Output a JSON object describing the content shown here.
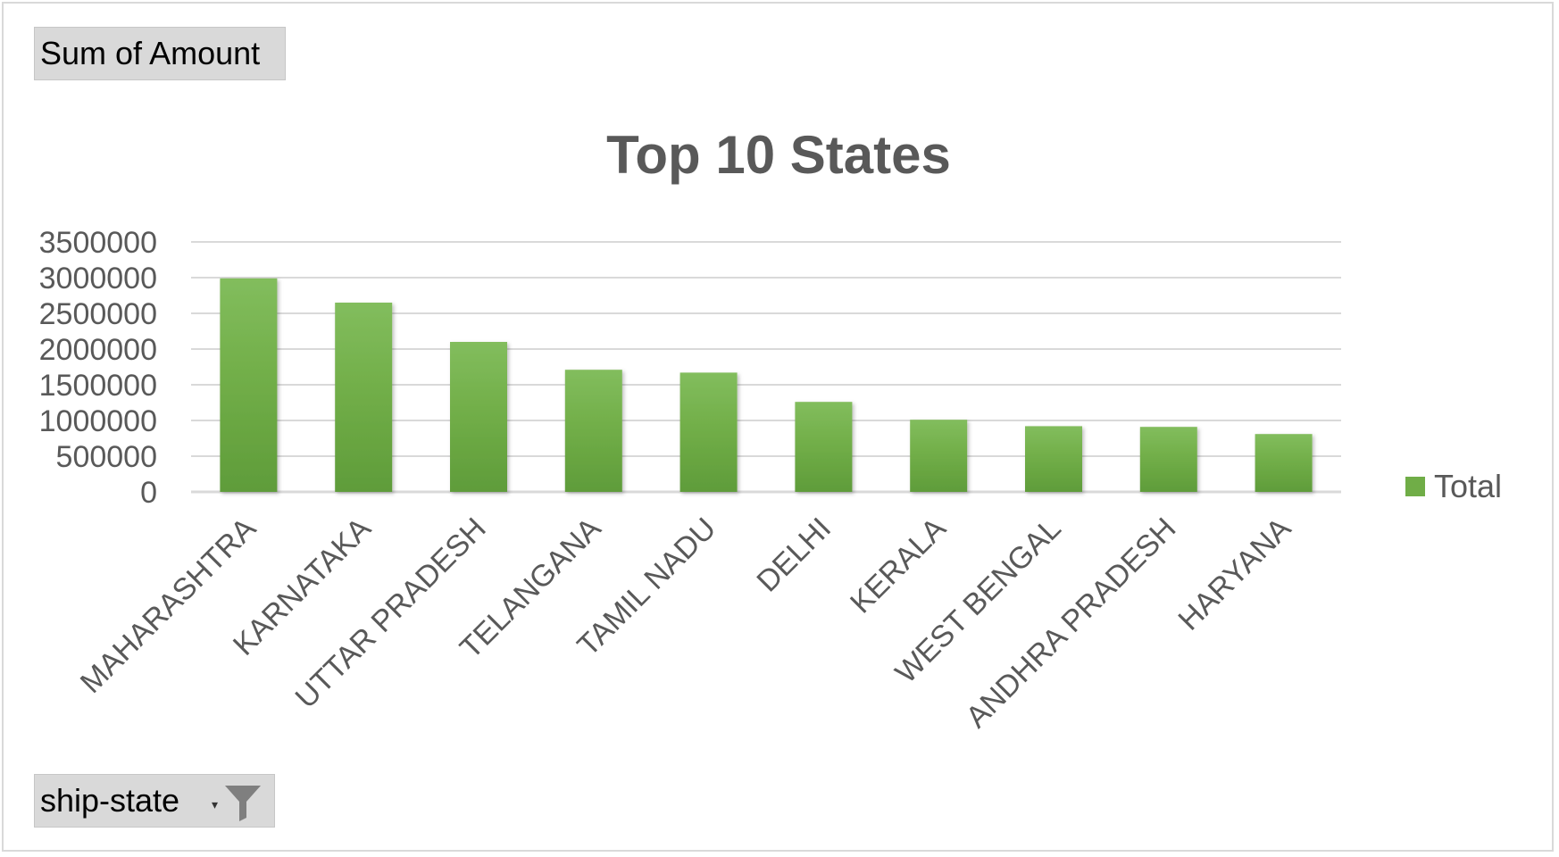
{
  "pivot": {
    "value_field_label": "Sum of Amount",
    "axis_field_label": "ship-state",
    "axis_field_icon": "filter-icon",
    "axis_field_dropdown_icon": "dropdown-arrow-icon"
  },
  "colors": {
    "bar": "#70ad47",
    "bar_light": "#82bd5d",
    "bar_dark": "#5f9c3a",
    "grid": "#d9d9d9",
    "text": "#595959",
    "title": "#595959"
  },
  "chart_data": {
    "type": "bar",
    "title": "Top 10 States",
    "xlabel": "",
    "ylabel": "",
    "categories": [
      "MAHARASHTRA",
      "KARNATAKA",
      "UTTAR PRADESH",
      "TELANGANA",
      "TAMIL NADU",
      "DELHI",
      "KERALA",
      "WEST BENGAL",
      "ANDHRA PRADESH",
      "HARYANA"
    ],
    "series": [
      {
        "name": "Total",
        "values": [
          2990000,
          2650000,
          2100000,
          1710000,
          1670000,
          1260000,
          1010000,
          920000,
          910000,
          810000
        ]
      }
    ],
    "ylim": [
      0,
      3500000
    ],
    "yticks": [
      0,
      500000,
      1000000,
      1500000,
      2000000,
      2500000,
      3000000,
      3500000
    ],
    "ytick_labels": [
      "0",
      "500000",
      "1000000",
      "1500000",
      "2000000",
      "2500000",
      "3000000",
      "3500000"
    ],
    "grid": true,
    "legend": "right"
  }
}
